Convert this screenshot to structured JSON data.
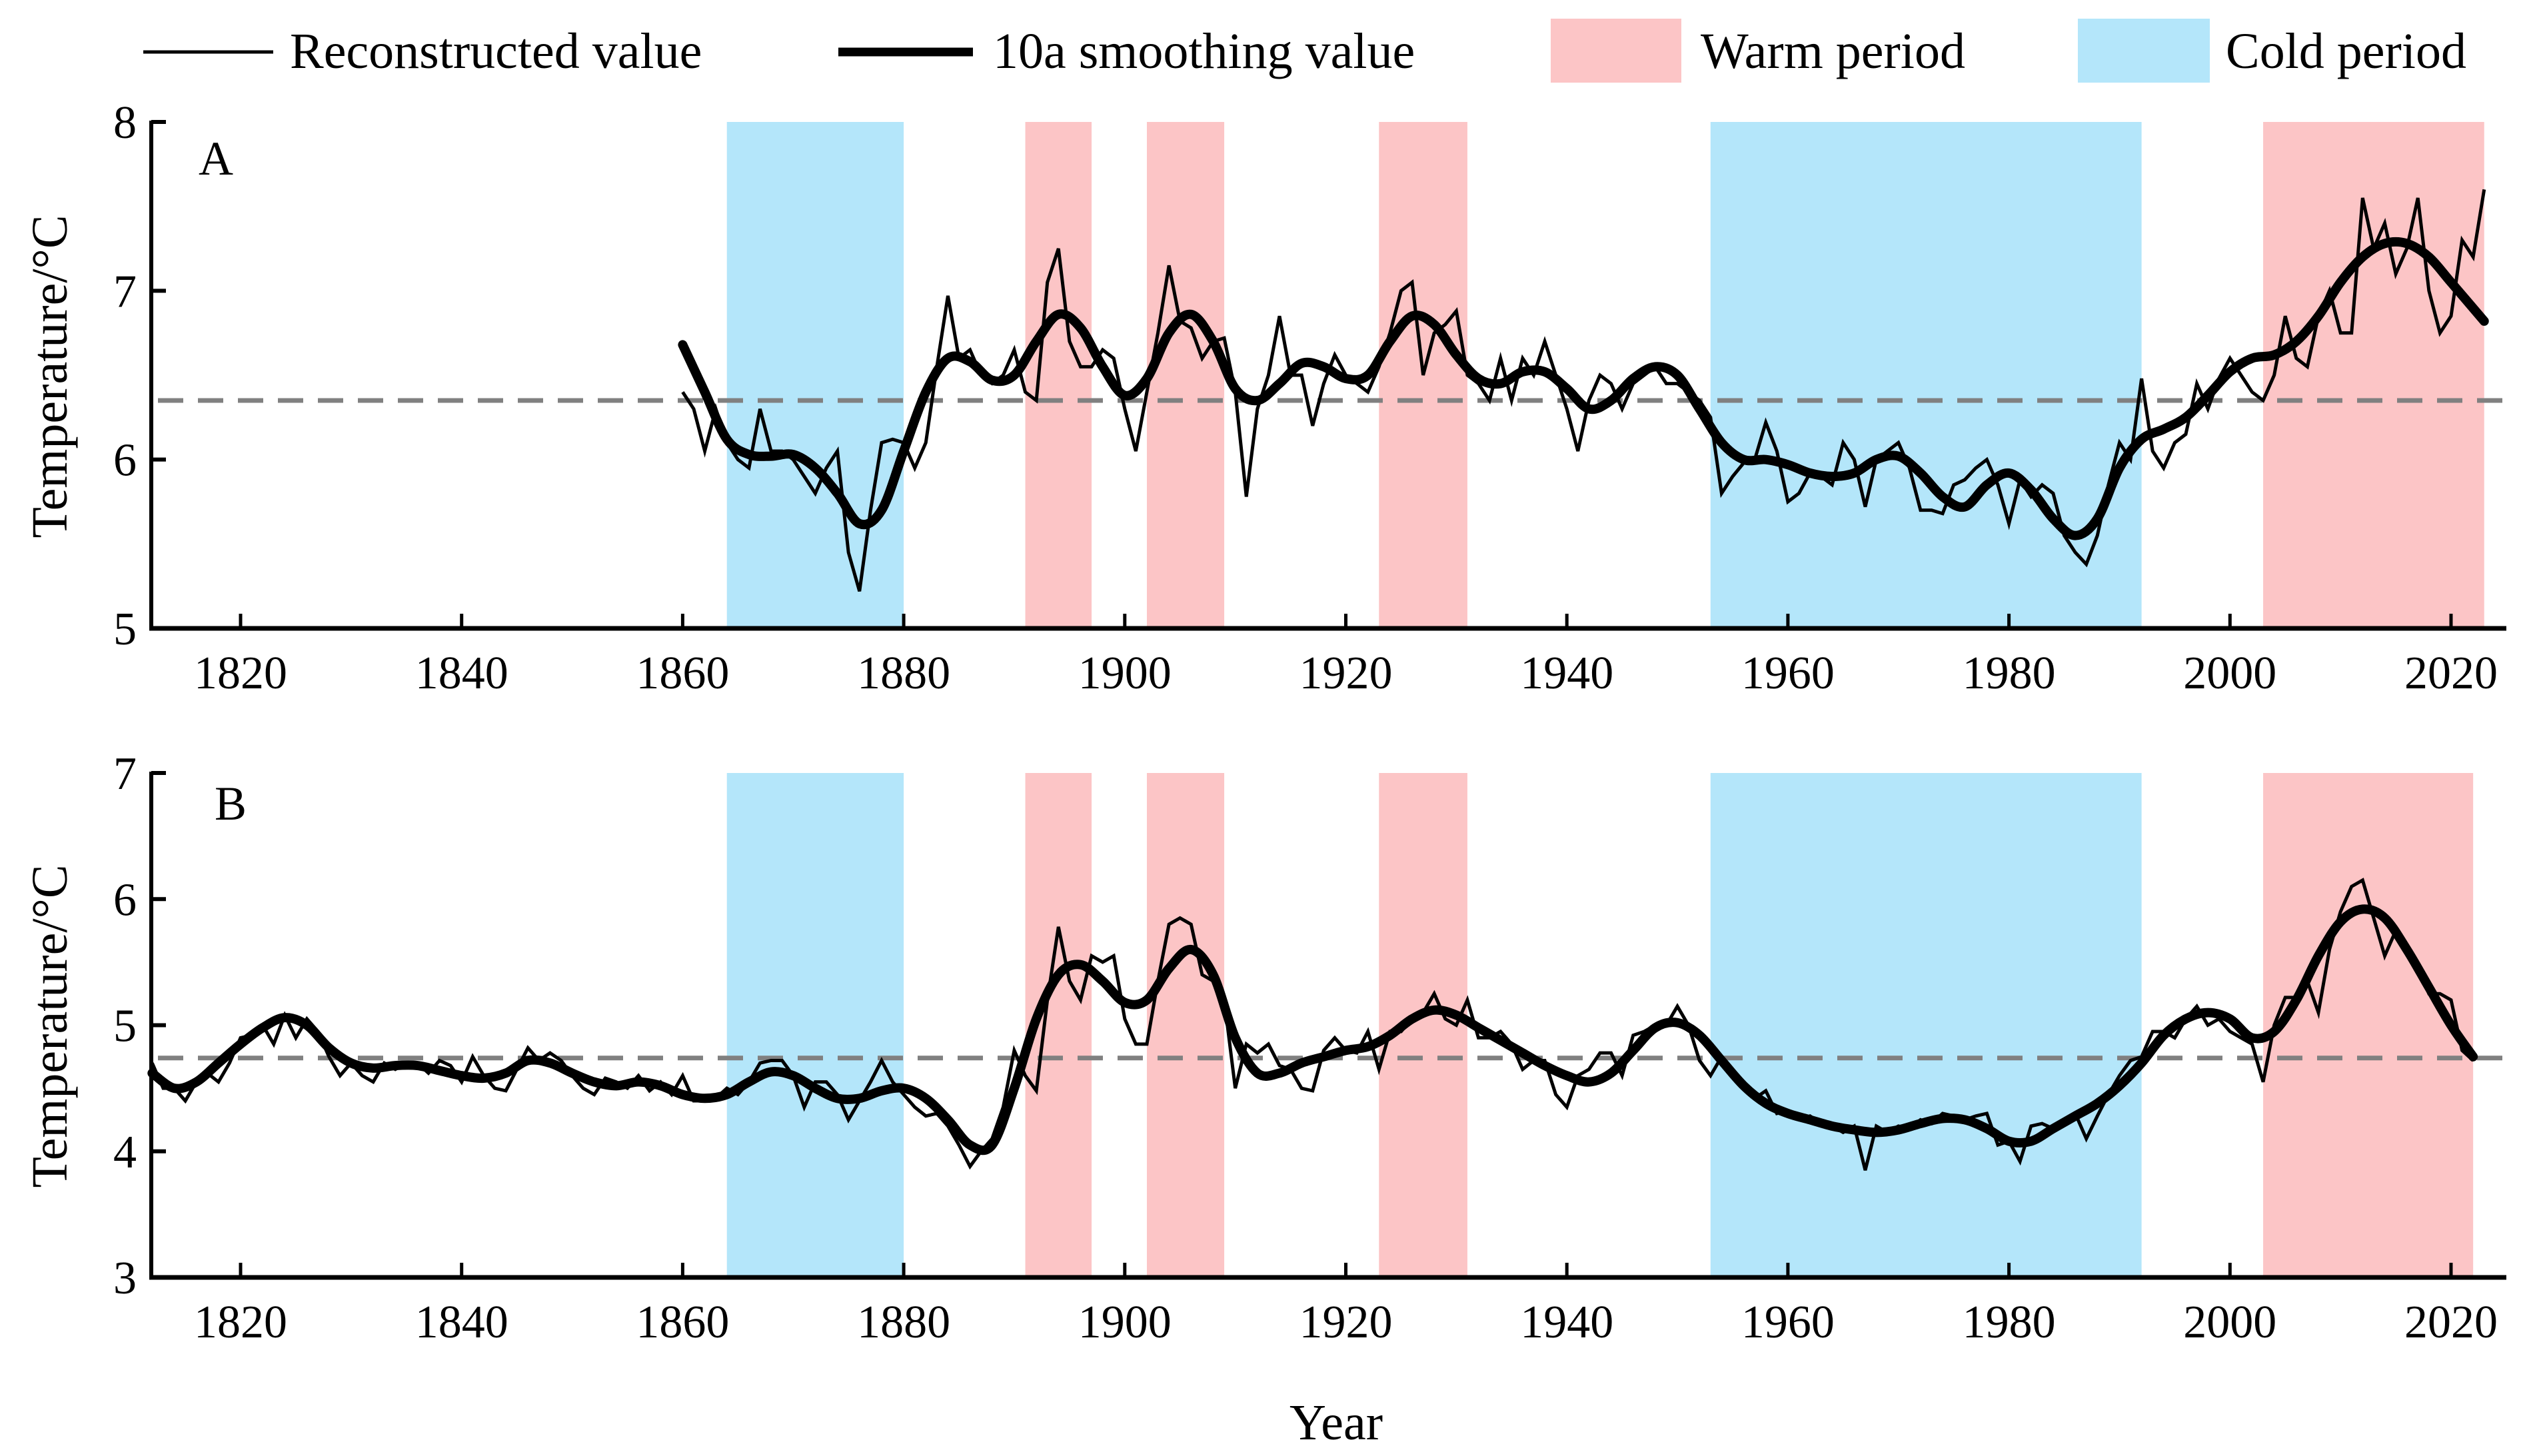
{
  "legend": {
    "reconstructed": "Reconstructed value",
    "smoothing": "10a smoothing value",
    "warm": "Warm period",
    "cold": "Cold period"
  },
  "colors": {
    "warm": "#fcc5c6",
    "cold": "#b4e6fa",
    "line": "#000000",
    "mean": "#808080"
  },
  "chart_data": [
    {
      "type": "line",
      "panel": "A",
      "xlabel": "Year",
      "ylabel": "Temperature/°C",
      "xlim": [
        1812,
        2025
      ],
      "ylim": [
        5,
        8
      ],
      "xticks": [
        1820,
        1840,
        1860,
        1880,
        1900,
        1920,
        1940,
        1960,
        1980,
        2000,
        2020
      ],
      "yticks": [
        5,
        6,
        7,
        8
      ],
      "mean_line": 6.35,
      "warm_periods": [
        [
          1891,
          1897
        ],
        [
          1902,
          1909
        ],
        [
          1923,
          1931
        ],
        [
          2003,
          2023
        ]
      ],
      "cold_periods": [
        [
          1864,
          1880
        ],
        [
          1953,
          1992
        ]
      ],
      "reconstructed": {
        "start_year": 1860,
        "values": [
          6.4,
          6.3,
          6.05,
          6.3,
          6.1,
          6.0,
          5.95,
          6.3,
          6.05,
          6.05,
          6.0,
          5.9,
          5.8,
          5.95,
          6.05,
          5.45,
          5.22,
          5.7,
          6.1,
          6.12,
          6.1,
          5.95,
          6.1,
          6.55,
          6.97,
          6.6,
          6.65,
          6.5,
          6.45,
          6.5,
          6.65,
          6.4,
          6.35,
          7.05,
          7.25,
          6.7,
          6.55,
          6.55,
          6.65,
          6.6,
          6.3,
          6.05,
          6.4,
          6.75,
          7.15,
          6.82,
          6.78,
          6.6,
          6.7,
          6.72,
          6.4,
          5.78,
          6.3,
          6.5,
          6.85,
          6.5,
          6.5,
          6.2,
          6.45,
          6.62,
          6.5,
          6.45,
          6.4,
          6.55,
          6.75,
          7.0,
          7.05,
          6.5,
          6.75,
          6.8,
          6.88,
          6.5,
          6.45,
          6.35,
          6.6,
          6.35,
          6.6,
          6.5,
          6.7,
          6.5,
          6.3,
          6.05,
          6.35,
          6.5,
          6.45,
          6.3,
          6.45,
          6.5,
          6.55,
          6.45,
          6.45,
          6.4,
          6.35,
          6.25,
          5.8,
          5.9,
          5.98,
          6.0,
          6.22,
          6.05,
          5.75,
          5.8,
          5.92,
          5.9,
          5.85,
          6.1,
          6.0,
          5.72,
          6.0,
          6.05,
          6.1,
          5.95,
          5.7,
          5.7,
          5.68,
          5.85,
          5.88,
          5.95,
          6.0,
          5.85,
          5.62,
          5.88,
          5.78,
          5.85,
          5.8,
          5.55,
          5.45,
          5.38,
          5.55,
          5.85,
          6.1,
          6.0,
          6.48,
          6.05,
          5.95,
          6.1,
          6.15,
          6.45,
          6.3,
          6.48,
          6.6,
          6.5,
          6.4,
          6.35,
          6.5,
          6.85,
          6.6,
          6.55,
          6.85,
          7.0,
          6.75,
          6.75,
          7.55,
          7.25,
          7.4,
          7.1,
          7.25,
          7.55,
          7.0,
          6.75,
          6.85,
          7.3,
          7.2,
          7.6
        ]
      },
      "smoothed": {
        "years": [
          1860,
          1862,
          1864,
          1866,
          1868,
          1870,
          1872,
          1874,
          1876,
          1878,
          1880,
          1882,
          1884,
          1886,
          1888,
          1890,
          1892,
          1894,
          1896,
          1898,
          1900,
          1902,
          1904,
          1906,
          1908,
          1910,
          1912,
          1914,
          1916,
          1918,
          1920,
          1922,
          1924,
          1926,
          1928,
          1930,
          1932,
          1934,
          1936,
          1938,
          1940,
          1942,
          1944,
          1946,
          1948,
          1950,
          1952,
          1954,
          1956,
          1958,
          1960,
          1962,
          1964,
          1966,
          1968,
          1970,
          1972,
          1974,
          1976,
          1978,
          1980,
          1982,
          1984,
          1986,
          1988,
          1990,
          1992,
          1994,
          1996,
          1998,
          2000,
          2002,
          2004,
          2006,
          2008,
          2010,
          2012,
          2014,
          2016,
          2018,
          2020,
          2023
        ],
        "values": [
          6.68,
          6.4,
          6.12,
          6.03,
          6.02,
          6.03,
          5.95,
          5.8,
          5.62,
          5.7,
          6.05,
          6.4,
          6.6,
          6.58,
          6.47,
          6.5,
          6.7,
          6.86,
          6.78,
          6.55,
          6.38,
          6.48,
          6.75,
          6.86,
          6.7,
          6.42,
          6.35,
          6.45,
          6.57,
          6.55,
          6.48,
          6.5,
          6.7,
          6.85,
          6.8,
          6.62,
          6.48,
          6.45,
          6.52,
          6.52,
          6.42,
          6.3,
          6.35,
          6.48,
          6.55,
          6.5,
          6.3,
          6.1,
          6.0,
          6.0,
          5.97,
          5.92,
          5.9,
          5.92,
          6.0,
          6.02,
          5.92,
          5.78,
          5.72,
          5.85,
          5.92,
          5.82,
          5.65,
          5.55,
          5.65,
          5.95,
          6.12,
          6.18,
          6.25,
          6.38,
          6.52,
          6.6,
          6.62,
          6.7,
          6.85,
          7.05,
          7.2,
          7.28,
          7.28,
          7.2,
          7.05,
          6.82
        ]
      }
    },
    {
      "type": "line",
      "panel": "B",
      "xlabel": "Year",
      "ylabel": "Temperature/°C",
      "xlim": [
        1812,
        2025
      ],
      "ylim": [
        3,
        7
      ],
      "xticks": [
        1820,
        1840,
        1860,
        1880,
        1900,
        1920,
        1940,
        1960,
        1980,
        2000,
        2020
      ],
      "yticks": [
        3,
        4,
        5,
        6,
        7
      ],
      "mean_line": 4.74,
      "warm_periods": [
        [
          1891,
          1897
        ],
        [
          1902,
          1909
        ],
        [
          1923,
          1931
        ],
        [
          2003,
          2022
        ]
      ],
      "cold_periods": [
        [
          1864,
          1880
        ],
        [
          1953,
          1992
        ]
      ],
      "reconstructed": {
        "start_year": 1812,
        "values": [
          4.7,
          4.5,
          4.5,
          4.4,
          4.55,
          4.62,
          4.55,
          4.7,
          4.9,
          4.92,
          5.0,
          4.85,
          5.08,
          4.9,
          5.05,
          4.95,
          4.75,
          4.6,
          4.7,
          4.6,
          4.55,
          4.7,
          4.65,
          4.7,
          4.7,
          4.62,
          4.72,
          4.68,
          4.55,
          4.75,
          4.6,
          4.5,
          4.48,
          4.65,
          4.82,
          4.72,
          4.78,
          4.72,
          4.6,
          4.5,
          4.45,
          4.58,
          4.55,
          4.5,
          4.6,
          4.48,
          4.55,
          4.45,
          4.6,
          4.4,
          4.4,
          4.42,
          4.5,
          4.45,
          4.55,
          4.7,
          4.72,
          4.72,
          4.6,
          4.35,
          4.55,
          4.55,
          4.45,
          4.25,
          4.4,
          4.55,
          4.72,
          4.55,
          4.45,
          4.35,
          4.28,
          4.3,
          4.2,
          4.05,
          3.88,
          4.0,
          4.1,
          4.35,
          4.8,
          4.6,
          4.48,
          5.2,
          5.78,
          5.35,
          5.2,
          5.55,
          5.5,
          5.55,
          5.05,
          4.85,
          4.85,
          5.35,
          5.8,
          5.85,
          5.8,
          5.4,
          5.35,
          5.2,
          4.5,
          4.85,
          4.78,
          4.85,
          4.68,
          4.65,
          4.5,
          4.48,
          4.8,
          4.9,
          4.8,
          4.78,
          4.95,
          4.65,
          4.95,
          4.95,
          5.05,
          5.1,
          5.25,
          5.05,
          5.0,
          5.2,
          4.9,
          4.9,
          4.95,
          4.85,
          4.65,
          4.72,
          4.72,
          4.45,
          4.35,
          4.6,
          4.65,
          4.78,
          4.78,
          4.6,
          4.92,
          4.95,
          5.0,
          5.0,
          5.15,
          5.0,
          4.72,
          4.6,
          4.75,
          4.6,
          4.5,
          4.42,
          4.48,
          4.3,
          4.32,
          4.25,
          4.28,
          4.22,
          4.2,
          4.15,
          4.2,
          3.85,
          4.2,
          4.15,
          4.2,
          4.18,
          4.25,
          4.22,
          4.3,
          4.28,
          4.25,
          4.28,
          4.3,
          4.05,
          4.08,
          3.92,
          4.2,
          4.22,
          4.18,
          4.25,
          4.3,
          4.1,
          4.28,
          4.45,
          4.6,
          4.72,
          4.75,
          4.95,
          4.95,
          4.9,
          5.05,
          5.15,
          5.0,
          5.05,
          4.95,
          4.9,
          4.85,
          4.55,
          5.0,
          5.22,
          5.22,
          5.35,
          5.1,
          5.6,
          5.9,
          6.1,
          6.15,
          5.85,
          5.55,
          5.75,
          5.6,
          5.45,
          5.25,
          5.25,
          5.2,
          4.8,
          4.72
        ]
      },
      "smoothed": {
        "years": [
          1812,
          1814,
          1816,
          1818,
          1820,
          1822,
          1824,
          1826,
          1828,
          1830,
          1832,
          1834,
          1836,
          1838,
          1840,
          1842,
          1844,
          1846,
          1848,
          1850,
          1852,
          1854,
          1856,
          1858,
          1860,
          1862,
          1864,
          1866,
          1868,
          1870,
          1872,
          1874,
          1876,
          1878,
          1880,
          1882,
          1884,
          1886,
          1888,
          1890,
          1892,
          1894,
          1896,
          1898,
          1900,
          1902,
          1904,
          1906,
          1908,
          1910,
          1912,
          1914,
          1916,
          1918,
          1920,
          1922,
          1924,
          1926,
          1928,
          1930,
          1932,
          1934,
          1936,
          1938,
          1940,
          1942,
          1944,
          1946,
          1948,
          1950,
          1952,
          1954,
          1956,
          1958,
          1960,
          1962,
          1964,
          1966,
          1968,
          1970,
          1972,
          1974,
          1976,
          1978,
          1980,
          1982,
          1984,
          1986,
          1988,
          1990,
          1992,
          1994,
          1996,
          1998,
          2000,
          2002,
          2004,
          2006,
          2008,
          2010,
          2012,
          2014,
          2016,
          2018,
          2020,
          2022
        ],
        "values": [
          4.62,
          4.5,
          4.55,
          4.7,
          4.85,
          4.98,
          5.06,
          5.0,
          4.82,
          4.7,
          4.66,
          4.68,
          4.68,
          4.64,
          4.6,
          4.58,
          4.62,
          4.72,
          4.7,
          4.62,
          4.55,
          4.52,
          4.55,
          4.52,
          4.45,
          4.42,
          4.45,
          4.55,
          4.63,
          4.6,
          4.5,
          4.42,
          4.42,
          4.48,
          4.5,
          4.42,
          4.25,
          4.05,
          4.05,
          4.5,
          5.05,
          5.4,
          5.48,
          5.35,
          5.18,
          5.2,
          5.45,
          5.6,
          5.4,
          4.9,
          4.62,
          4.62,
          4.7,
          4.75,
          4.8,
          4.83,
          4.92,
          5.05,
          5.12,
          5.08,
          4.98,
          4.88,
          4.78,
          4.68,
          4.6,
          4.55,
          4.62,
          4.8,
          4.98,
          5.02,
          4.92,
          4.72,
          4.52,
          4.38,
          4.3,
          4.25,
          4.2,
          4.17,
          4.15,
          4.17,
          4.22,
          4.26,
          4.25,
          4.18,
          4.08,
          4.08,
          4.18,
          4.28,
          4.38,
          4.52,
          4.7,
          4.92,
          5.05,
          5.1,
          5.05,
          4.9,
          4.95,
          5.2,
          5.55,
          5.82,
          5.92,
          5.85,
          5.6,
          5.3,
          5.0,
          4.75
        ]
      }
    }
  ]
}
